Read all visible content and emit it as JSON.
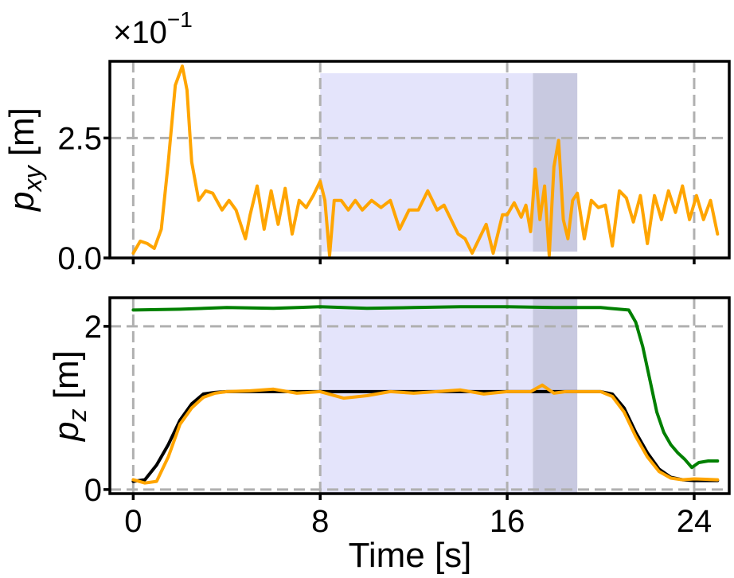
{
  "chart_data": [
    {
      "type": "line",
      "ylabel": {
        "base": "p",
        "sub": "xy",
        "unit": " [m]"
      },
      "multiplier": {
        "base": "×10",
        "exp": "−1"
      },
      "ylim": [
        0,
        4.1
      ],
      "yticks": [
        0.0,
        2.5
      ],
      "ytick_labels": [
        "0.0",
        "2.5"
      ],
      "xlim": [
        -1,
        25.5
      ],
      "xticks": [
        0,
        8,
        16,
        24
      ],
      "grid": "dashed",
      "shaded_regions": [
        {
          "x": [
            8,
            17.1
          ],
          "color": "#e4e4fb"
        },
        {
          "x": [
            17.1,
            19
          ],
          "color": "#c8c9e0"
        }
      ],
      "series": [
        {
          "color": "#ffa500",
          "x": [
            0,
            0.3,
            0.6,
            0.9,
            1.2,
            1.5,
            1.8,
            2.1,
            2.3,
            2.5,
            2.8,
            3.1,
            3.4,
            3.8,
            4.1,
            4.4,
            4.8,
            5.0,
            5.3,
            5.6,
            5.9,
            6.2,
            6.5,
            6.8,
            7.1,
            7.4,
            7.7,
            8.0,
            8.2,
            8.4,
            8.6,
            8.9,
            9.2,
            9.5,
            9.8,
            10.2,
            10.6,
            11.0,
            11.4,
            11.8,
            12.2,
            12.6,
            13.0,
            13.3,
            13.6,
            13.9,
            14.2,
            14.5,
            14.8,
            15.1,
            15.4,
            15.8,
            16.0,
            16.3,
            16.6,
            16.8,
            17.0,
            17.2,
            17.4,
            17.6,
            17.8,
            18.0,
            18.2,
            18.4,
            18.6,
            18.8,
            19.0,
            19.3,
            19.6,
            19.9,
            20.2,
            20.5,
            20.8,
            21.1,
            21.4,
            21.7,
            22.0,
            22.3,
            22.6,
            22.9,
            23.2,
            23.5,
            23.8,
            24.1,
            24.4,
            24.7,
            25.0
          ],
          "y": [
            0.1,
            0.35,
            0.3,
            0.2,
            0.6,
            2.0,
            3.6,
            4.0,
            3.5,
            2.0,
            1.2,
            1.4,
            1.35,
            1.0,
            1.2,
            1.0,
            0.4,
            0.9,
            1.5,
            0.6,
            1.4,
            0.7,
            1.45,
            0.5,
            1.2,
            1.05,
            1.3,
            1.6,
            1.2,
            0.05,
            1.2,
            1.2,
            1.0,
            1.2,
            1.0,
            1.2,
            1.05,
            1.2,
            0.6,
            1.0,
            1.0,
            1.4,
            1.0,
            1.1,
            0.8,
            0.5,
            0.4,
            0.1,
            0.4,
            0.7,
            0.1,
            0.9,
            0.9,
            1.15,
            0.85,
            1.1,
            0.55,
            1.85,
            0.8,
            1.5,
            0.05,
            1.9,
            2.45,
            0.8,
            0.4,
            1.2,
            1.35,
            0.4,
            1.2,
            1.05,
            1.1,
            0.25,
            1.4,
            1.25,
            0.75,
            1.3,
            0.3,
            1.3,
            0.8,
            1.4,
            0.95,
            1.5,
            0.8,
            1.3,
            0.8,
            1.2,
            0.5
          ]
        }
      ]
    },
    {
      "type": "line",
      "ylabel": {
        "base": "p",
        "sub": "z",
        "unit": " [m]"
      },
      "xlabel": "Time [s]",
      "ylim": [
        -0.05,
        2.35
      ],
      "yticks": [
        0,
        2
      ],
      "ytick_labels": [
        "0",
        "2"
      ],
      "xlim": [
        -1,
        25.5
      ],
      "xticks": [
        0,
        8,
        16,
        24
      ],
      "xtick_labels": [
        "0",
        "8",
        "16",
        "24"
      ],
      "grid": "dashed",
      "shaded_regions": [
        {
          "x": [
            8,
            17.1
          ],
          "color": "#e4e4fb"
        },
        {
          "x": [
            17.1,
            19
          ],
          "color": "#c8c9e0"
        }
      ],
      "series": [
        {
          "color": "#008000",
          "x": [
            0,
            2,
            4,
            6,
            8,
            10,
            12,
            14,
            16,
            18,
            20,
            21.2,
            21.5,
            21.8,
            22.1,
            22.4,
            22.7,
            23.0,
            23.3,
            23.6,
            23.9,
            24.2,
            24.6,
            25.0
          ],
          "y": [
            2.2,
            2.21,
            2.23,
            2.22,
            2.24,
            2.22,
            2.23,
            2.24,
            2.24,
            2.23,
            2.23,
            2.2,
            2.05,
            1.75,
            1.35,
            0.95,
            0.7,
            0.55,
            0.45,
            0.37,
            0.27,
            0.33,
            0.35,
            0.35
          ]
        },
        {
          "color": "#000000",
          "x": [
            0,
            0.5,
            1.0,
            1.5,
            2.0,
            2.5,
            3.0,
            3.5,
            4.0,
            20.0,
            20.5,
            21.0,
            21.5,
            22.0,
            22.5,
            23.0,
            23.5,
            24.0,
            25.0
          ],
          "y": [
            0.1,
            0.12,
            0.3,
            0.55,
            0.85,
            1.05,
            1.17,
            1.19,
            1.2,
            1.2,
            1.17,
            1.0,
            0.7,
            0.45,
            0.25,
            0.15,
            0.12,
            0.11,
            0.11
          ]
        },
        {
          "color": "#ffa500",
          "x": [
            0,
            0.5,
            1.0,
            1.5,
            2.0,
            2.5,
            3.0,
            3.5,
            4.0,
            5,
            6,
            7,
            8,
            9,
            10,
            11,
            12,
            13,
            14,
            15,
            16,
            17,
            17.5,
            18,
            18.5,
            19,
            20,
            20.5,
            21.0,
            21.5,
            22.0,
            22.5,
            23.0,
            23.5,
            24.0,
            25.0
          ],
          "y": [
            0.12,
            0.08,
            0.1,
            0.4,
            0.8,
            1.0,
            1.13,
            1.18,
            1.2,
            1.21,
            1.23,
            1.18,
            1.2,
            1.12,
            1.15,
            1.2,
            1.18,
            1.2,
            1.22,
            1.17,
            1.2,
            1.2,
            1.28,
            1.18,
            1.2,
            1.2,
            1.2,
            1.14,
            0.95,
            0.65,
            0.4,
            0.22,
            0.14,
            0.12,
            0.13,
            0.12
          ]
        }
      ]
    }
  ]
}
